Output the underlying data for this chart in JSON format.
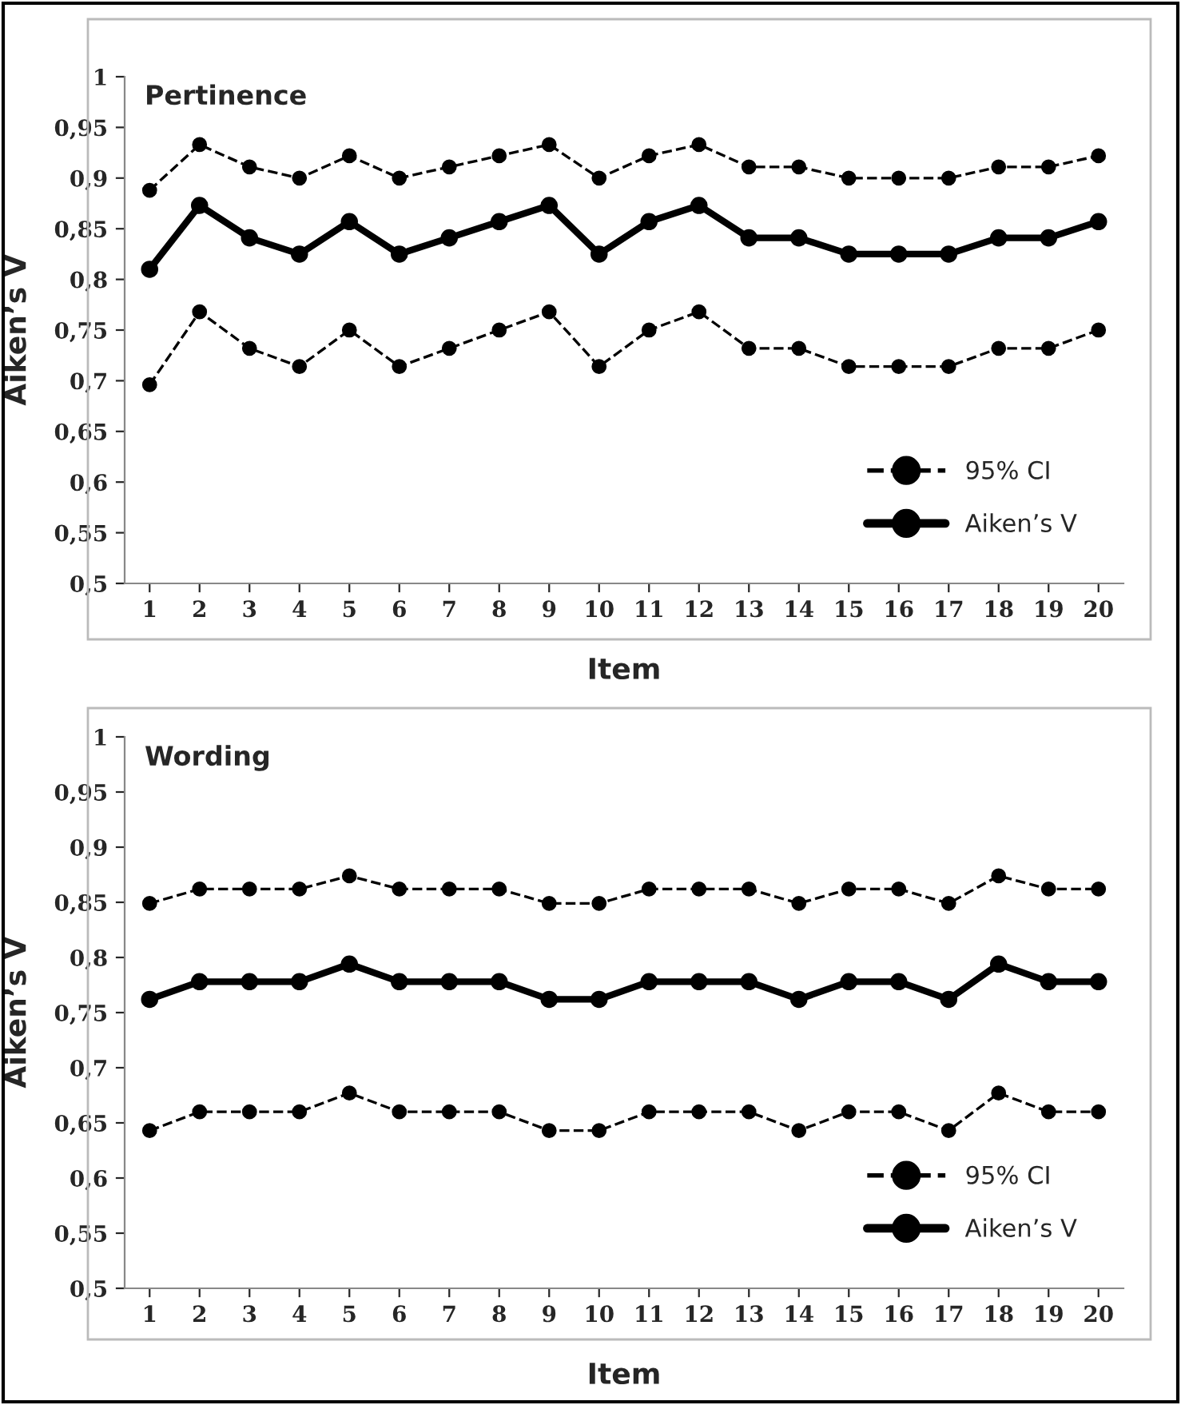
{
  "chart_data": [
    {
      "type": "line",
      "title": "Pertinence",
      "xlabel": "Item",
      "ylabel": "Aiken’s V",
      "categories": [
        "1",
        "2",
        "3",
        "4",
        "5",
        "6",
        "7",
        "8",
        "9",
        "10",
        "11",
        "12",
        "13",
        "14",
        "15",
        "16",
        "17",
        "18",
        "19",
        "20"
      ],
      "ylim": [
        0.5,
        1
      ],
      "yticks": [
        {
          "value": 0.5,
          "label": "0,5"
        },
        {
          "value": 0.55,
          "label": "0,55"
        },
        {
          "value": 0.6,
          "label": "0,6"
        },
        {
          "value": 0.65,
          "label": "0,65"
        },
        {
          "value": 0.7,
          "label": "0,7"
        },
        {
          "value": 0.75,
          "label": "0,75"
        },
        {
          "value": 0.8,
          "label": "0,8"
        },
        {
          "value": 0.85,
          "label": "0,85"
        },
        {
          "value": 0.9,
          "label": "0,9"
        },
        {
          "value": 0.95,
          "label": "0,95"
        },
        {
          "value": 1,
          "label": "1"
        }
      ],
      "grid": false,
      "legend": "bottom right",
      "marker": "circle",
      "series": [
        {
          "name": "95% CI",
          "color": "#000000",
          "line_style": "dashed",
          "values": [
            0.888,
            0.933,
            0.911,
            0.9,
            0.922,
            0.9,
            0.911,
            0.922,
            0.933,
            0.9,
            0.922,
            0.933,
            0.911,
            0.911,
            0.9,
            0.9,
            0.9,
            0.911,
            0.911,
            0.922
          ]
        },
        {
          "name": "Aiken’s V",
          "color": "#000000",
          "line_style": "solid",
          "values": [
            0.81,
            0.873,
            0.841,
            0.825,
            0.857,
            0.825,
            0.841,
            0.857,
            0.873,
            0.825,
            0.857,
            0.873,
            0.841,
            0.841,
            0.825,
            0.825,
            0.825,
            0.841,
            0.841,
            0.857
          ]
        },
        {
          "color": "#000000",
          "line_style": "dashed",
          "values": [
            0.696,
            0.768,
            0.732,
            0.714,
            0.75,
            0.714,
            0.732,
            0.75,
            0.768,
            0.714,
            0.75,
            0.768,
            0.732,
            0.732,
            0.714,
            0.714,
            0.714,
            0.732,
            0.732,
            0.75
          ]
        }
      ]
    },
    {
      "type": "line",
      "title": "Wording",
      "xlabel": "Item",
      "ylabel": "Aiken’s V",
      "categories": [
        "1",
        "2",
        "3",
        "4",
        "5",
        "6",
        "7",
        "8",
        "9",
        "10",
        "11",
        "12",
        "13",
        "14",
        "15",
        "16",
        "17",
        "18",
        "19",
        "20"
      ],
      "ylim": [
        0.5,
        1
      ],
      "yticks": [
        {
          "value": 0.5,
          "label": "0,5"
        },
        {
          "value": 0.55,
          "label": "0,55"
        },
        {
          "value": 0.6,
          "label": "0,6"
        },
        {
          "value": 0.65,
          "label": "0,65"
        },
        {
          "value": 0.7,
          "label": "0,7"
        },
        {
          "value": 0.75,
          "label": "0,75"
        },
        {
          "value": 0.8,
          "label": "0,8"
        },
        {
          "value": 0.85,
          "label": "0,85"
        },
        {
          "value": 0.9,
          "label": "0,9"
        },
        {
          "value": 0.95,
          "label": "0,95"
        },
        {
          "value": 1,
          "label": "1"
        }
      ],
      "grid": false,
      "legend": "bottom right",
      "marker": "circle",
      "series": [
        {
          "name": "95% CI",
          "color": "#000000",
          "line_style": "dashed",
          "values": [
            0.849,
            0.862,
            0.862,
            0.862,
            0.874,
            0.862,
            0.862,
            0.862,
            0.849,
            0.849,
            0.862,
            0.862,
            0.862,
            0.849,
            0.862,
            0.862,
            0.849,
            0.874,
            0.862,
            0.862
          ]
        },
        {
          "name": "Aiken’s V",
          "color": "#000000",
          "line_style": "solid",
          "values": [
            0.762,
            0.778,
            0.778,
            0.778,
            0.794,
            0.778,
            0.778,
            0.778,
            0.762,
            0.762,
            0.778,
            0.778,
            0.778,
            0.762,
            0.778,
            0.778,
            0.762,
            0.794,
            0.778,
            0.778
          ]
        },
        {
          "color": "#000000",
          "line_style": "dashed",
          "values": [
            0.643,
            0.66,
            0.66,
            0.66,
            0.677,
            0.66,
            0.66,
            0.66,
            0.643,
            0.643,
            0.66,
            0.66,
            0.66,
            0.643,
            0.66,
            0.66,
            0.643,
            0.677,
            0.66,
            0.66
          ]
        }
      ]
    }
  ]
}
